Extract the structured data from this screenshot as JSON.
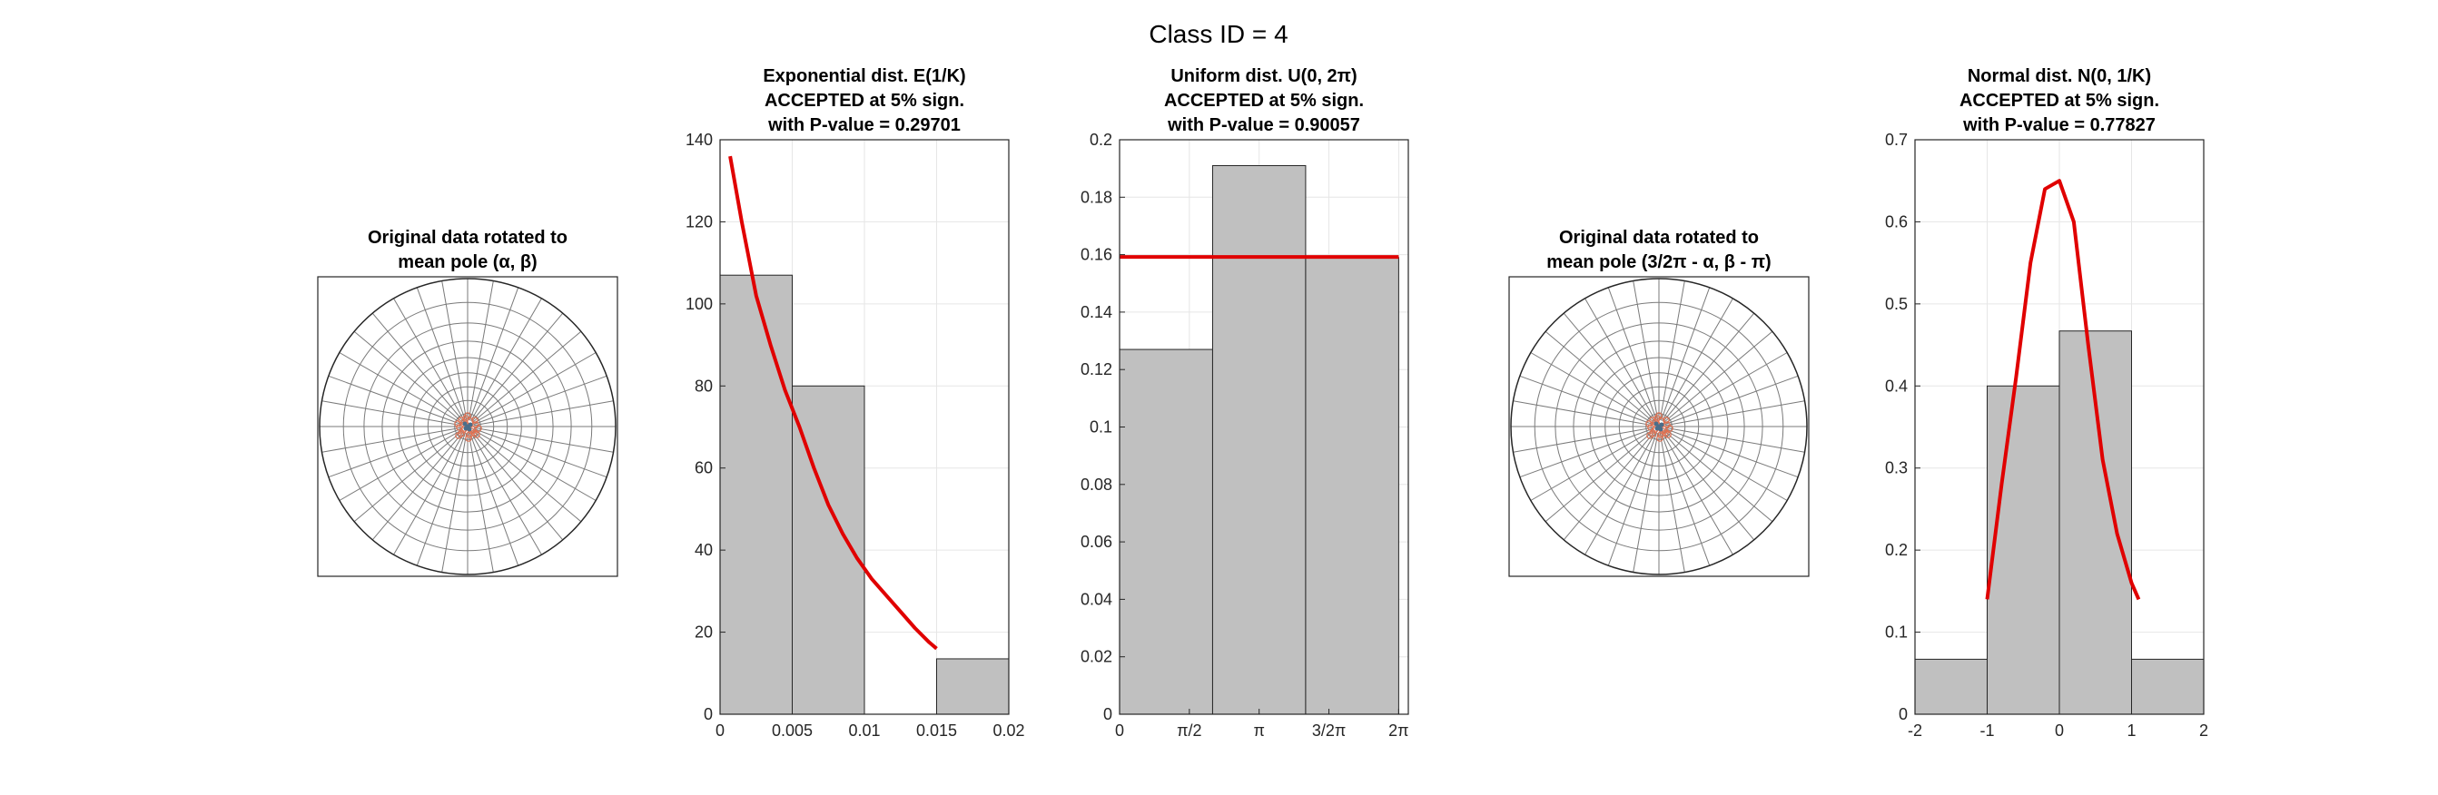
{
  "figure": {
    "suptitle": "Class ID = 4"
  },
  "colors": {
    "bar_fill": "#c0c0c0",
    "bar_edge": "#262626",
    "fit_line": "#e00000",
    "grid": "#e6e6e6",
    "stereo_grid": "#7a7a7a",
    "data_points": "#e07050"
  },
  "chart_data": [
    {
      "id": "stereonet-1",
      "type": "scatter",
      "title": [
        "Original data rotated to",
        "mean pole (α, β)"
      ],
      "grid": true,
      "note": "polar stereonet with points clustered at center"
    },
    {
      "id": "exponential",
      "type": "bar",
      "title": [
        "Exponential dist. E(1/K)",
        "ACCEPTED at 5% sign.",
        "with P-value = 0.29701"
      ],
      "bin_edges": [
        0,
        0.005,
        0.01,
        0.015,
        0.02
      ],
      "values": [
        107,
        80,
        0,
        13.5
      ],
      "xlim": [
        0,
        0.02
      ],
      "ylim": [
        0,
        140
      ],
      "xticks": [
        0,
        0.005,
        0.01,
        0.015,
        0.02
      ],
      "xtick_labels": [
        "0",
        "0.005",
        "0.01",
        "0.015",
        "0.02"
      ],
      "yticks": [
        0,
        20,
        40,
        60,
        80,
        100,
        120,
        140
      ],
      "ytick_labels": [
        "0",
        "20",
        "40",
        "60",
        "80",
        "100",
        "120",
        "140"
      ],
      "grid": true,
      "fit": {
        "x": [
          0.0007,
          0.0015,
          0.0025,
          0.0035,
          0.0045,
          0.0055,
          0.0065,
          0.0075,
          0.0085,
          0.0095,
          0.0105,
          0.0115,
          0.0125,
          0.0135,
          0.0145,
          0.015
        ],
        "y": [
          136,
          120,
          102,
          90,
          79,
          70,
          60,
          51,
          44,
          38,
          33,
          29,
          25,
          21,
          17.5,
          16
        ]
      }
    },
    {
      "id": "uniform",
      "type": "bar",
      "title": [
        "Uniform dist. U(0, 2π)",
        "ACCEPTED at 5% sign.",
        "with P-value = 0.90057"
      ],
      "bin_edges": [
        0,
        2.0944,
        4.1888,
        6.2832
      ],
      "values": [
        0.127,
        0.191,
        0.159
      ],
      "xlim": [
        0,
        6.5
      ],
      "ylim": [
        0,
        0.2
      ],
      "xticks": [
        0,
        1.5708,
        3.1416,
        4.7124,
        6.2832
      ],
      "xtick_labels": [
        "0",
        "π/2",
        "π",
        "3/2π",
        "2π"
      ],
      "yticks": [
        0,
        0.02,
        0.04,
        0.06,
        0.08,
        0.1,
        0.12,
        0.14,
        0.16,
        0.18,
        0.2
      ],
      "ytick_labels": [
        "0",
        "0.02",
        "0.04",
        "0.06",
        "0.08",
        "0.1",
        "0.12",
        "0.14",
        "0.16",
        "0.18",
        "0.2"
      ],
      "grid": true,
      "fit": {
        "x": [
          0,
          6.2832
        ],
        "y": [
          0.1592,
          0.1592
        ]
      }
    },
    {
      "id": "stereonet-2",
      "type": "scatter",
      "title": [
        "Original data rotated to",
        "mean pole (3/2π - α, β - π)"
      ],
      "grid": true,
      "note": "polar stereonet with points clustered at center"
    },
    {
      "id": "normal",
      "type": "bar",
      "title": [
        "Normal dist. N(0, 1/K)",
        "ACCEPTED at 5% sign.",
        "with P-value = 0.77827"
      ],
      "bin_edges": [
        -2,
        -1,
        0,
        1,
        2
      ],
      "values": [
        0.067,
        0.4,
        0.467,
        0.067
      ],
      "xlim": [
        -2,
        2
      ],
      "ylim": [
        0,
        0.7
      ],
      "xticks": [
        -2,
        -1,
        0,
        1,
        2
      ],
      "xtick_labels": [
        "-2",
        "-1",
        "0",
        "1",
        "2"
      ],
      "yticks": [
        0,
        0.1,
        0.2,
        0.3,
        0.4,
        0.5,
        0.6,
        0.7
      ],
      "ytick_labels": [
        "0",
        "0.1",
        "0.2",
        "0.3",
        "0.4",
        "0.5",
        "0.6",
        "0.7"
      ],
      "grid": true,
      "fit": {
        "x": [
          -1.0,
          -0.8,
          -0.6,
          -0.4,
          -0.2,
          -0.1,
          0.0,
          0.2,
          0.4,
          0.6,
          0.8,
          1.0,
          1.1
        ],
        "y": [
          0.14,
          0.28,
          0.41,
          0.55,
          0.64,
          0.645,
          0.65,
          0.6,
          0.45,
          0.31,
          0.22,
          0.16,
          0.14
        ]
      }
    }
  ]
}
